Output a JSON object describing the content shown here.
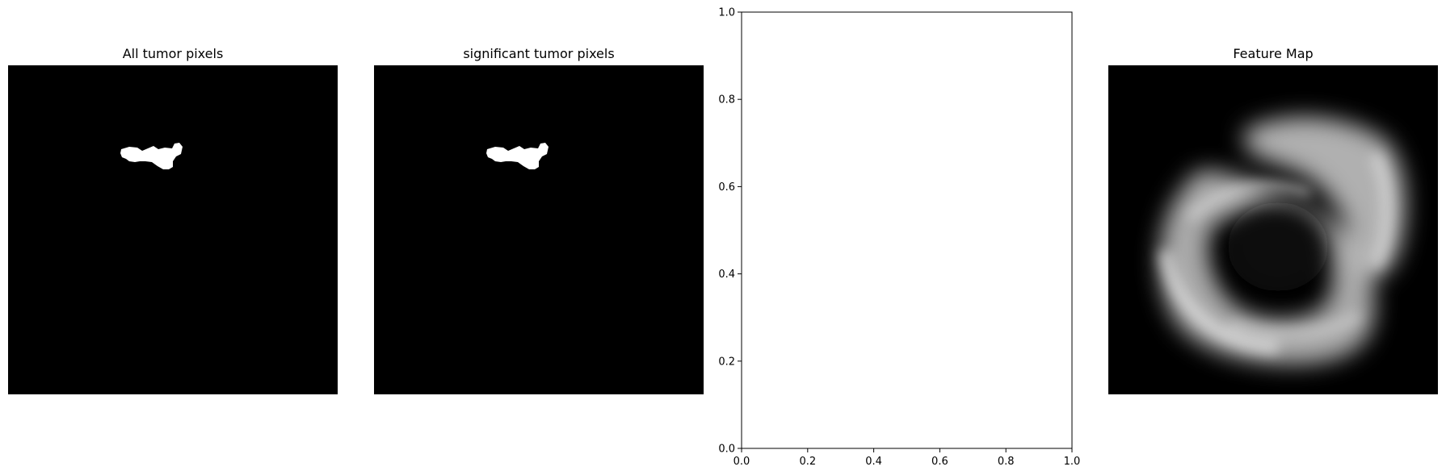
{
  "panels": [
    {
      "title": "All tumor pixels",
      "image": "binary tumor mask (white blob on black)"
    },
    {
      "title": "significant tumor pixels",
      "image": "binary tumor mask (white blob on black)"
    },
    {
      "title": "",
      "image": ""
    },
    {
      "title": "Feature Map",
      "image": "blurred grayscale ring-shaped activation"
    }
  ],
  "chart_data": [
    {
      "type": "heatmap",
      "title": "All tumor pixels",
      "colormap": "gray"
    },
    {
      "type": "heatmap",
      "title": "significant tumor pixels",
      "colormap": "gray"
    },
    {
      "type": "scatter",
      "title": "",
      "xlim": [
        0.0,
        1.0
      ],
      "ylim": [
        0.0,
        1.0
      ],
      "xticks": [
        "0.0",
        "0.2",
        "0.4",
        "0.6",
        "0.8",
        "1.0"
      ],
      "yticks": [
        "0.0",
        "0.2",
        "0.4",
        "0.6",
        "0.8",
        "1.0"
      ],
      "series": [],
      "grid": false
    },
    {
      "type": "heatmap",
      "title": "Feature Map",
      "colormap": "gray"
    }
  ],
  "colors": {
    "background": "#ffffff",
    "image_bg": "#000000",
    "mask": "#ffffff"
  }
}
